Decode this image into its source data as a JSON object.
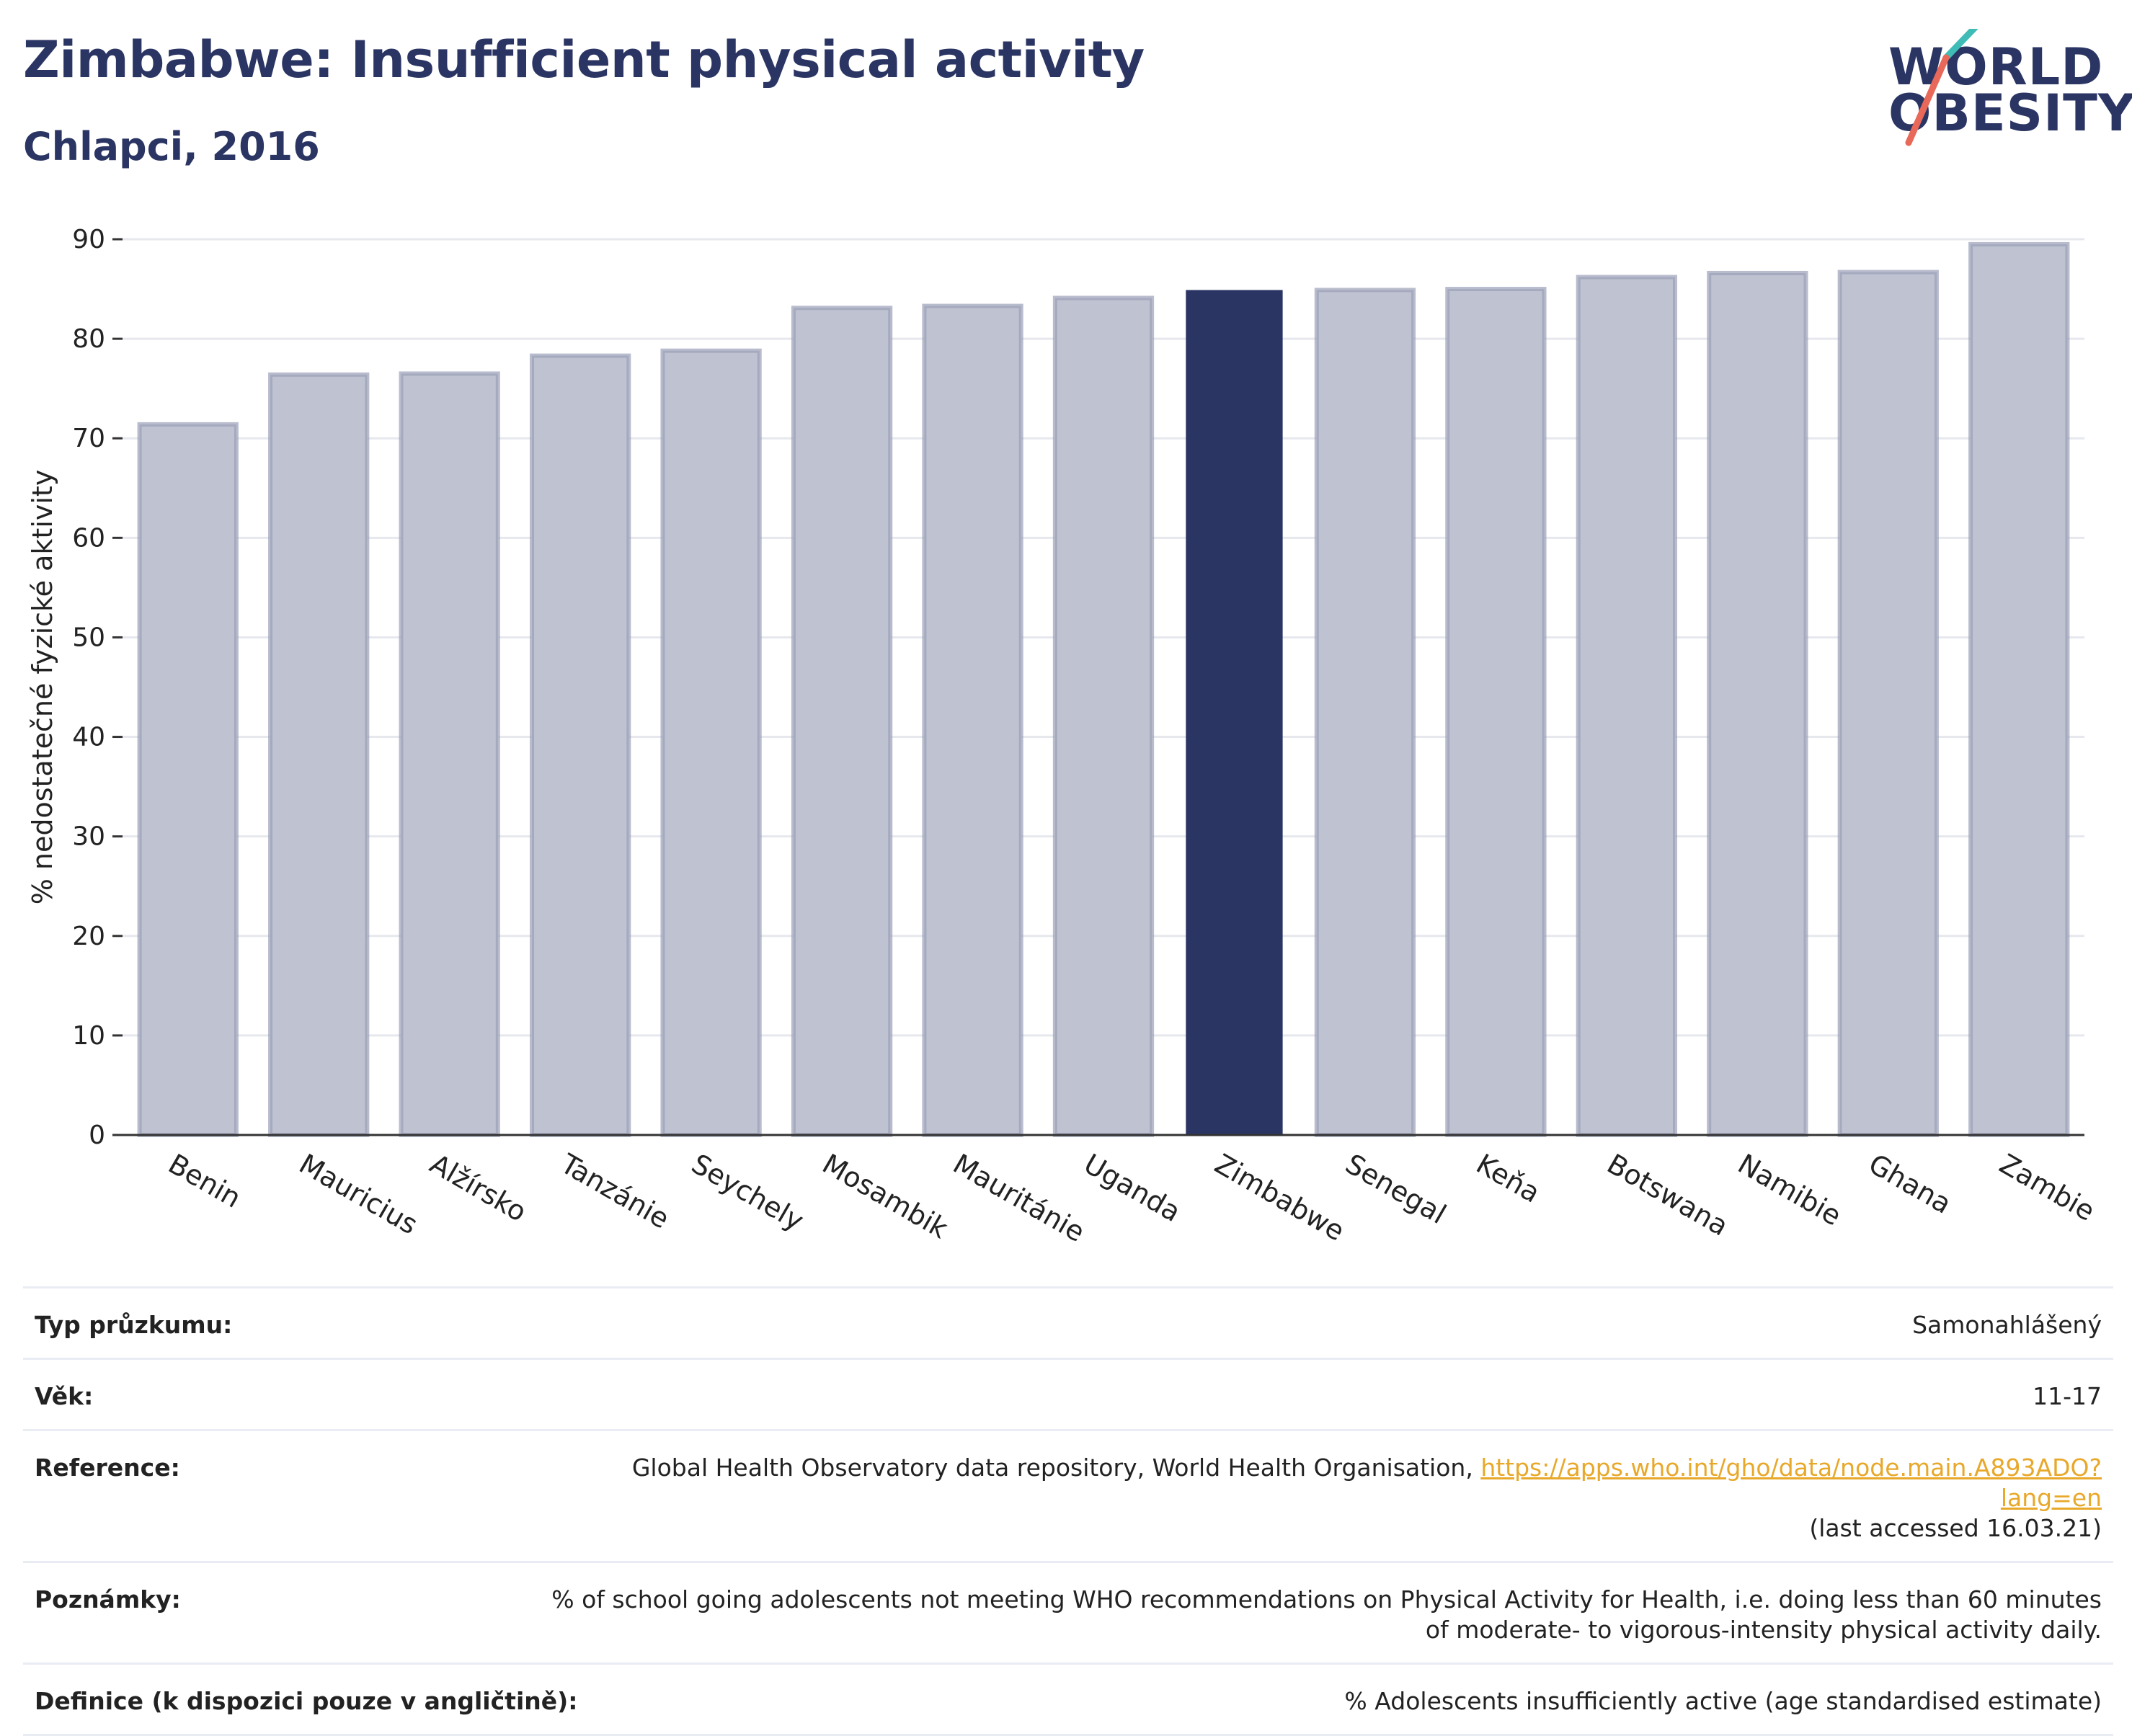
{
  "header": {
    "title": "Zimbabwe: Insufficient physical activity",
    "subtitle": "Chlapci, 2016"
  },
  "logo": {
    "line1": "WORLD",
    "line2": "OBESITY",
    "brand_color": "#2b3563",
    "slash_colors": [
      "#3fbcb6",
      "#e8685a"
    ]
  },
  "chart_data": {
    "type": "bar",
    "categories": [
      "Benin",
      "Mauricius",
      "Alžírsko",
      "Tanzánie",
      "Seychely",
      "Mosambik",
      "Mauritánie",
      "Uganda",
      "Zimbabwe",
      "Senegal",
      "Keňa",
      "Botswana",
      "Namibie",
      "Ghana",
      "Zambie"
    ],
    "values": [
      71.4,
      76.4,
      76.5,
      78.3,
      78.8,
      83.1,
      83.3,
      84.1,
      84.9,
      84.9,
      85.0,
      86.2,
      86.6,
      86.7,
      89.5
    ],
    "highlight": "Zimbabwe",
    "ylabel": "% nedostatečné fyzické aktivity",
    "xlabel": "",
    "ylim": [
      0,
      90
    ],
    "yticks": [
      0,
      10,
      20,
      30,
      40,
      50,
      60,
      70,
      80,
      90
    ],
    "grid": true,
    "colors": {
      "bar": "#bfc3d1",
      "bar_outline": "#9aa0b8",
      "highlight": "#2b3563",
      "grid": "#e6e8ee",
      "axis": "#333333"
    }
  },
  "info": {
    "rows": [
      {
        "label": "Typ průzkumu:",
        "value": "Samonahlášený"
      },
      {
        "label": "Věk:",
        "value": "11-17"
      },
      {
        "label": "Reference:",
        "value": "Global Health Observatory data repository, World Health Organisation, ",
        "link": "https://apps.who.int/gho/data/node.main.A893ADO?lang=en",
        "value_after": "(last accessed 16.03.21)"
      },
      {
        "label": "Poznámky:",
        "value": "% of school going adolescents not meeting WHO recommendations on Physical Activity for Health, i.e. doing less than 60 minutes of moderate- to vigorous-intensity physical activity daily."
      },
      {
        "label": "Definice (k dispozici pouze v angličtině):",
        "value": "% Adolescents insufficiently active (age standardised estimate)"
      }
    ]
  }
}
